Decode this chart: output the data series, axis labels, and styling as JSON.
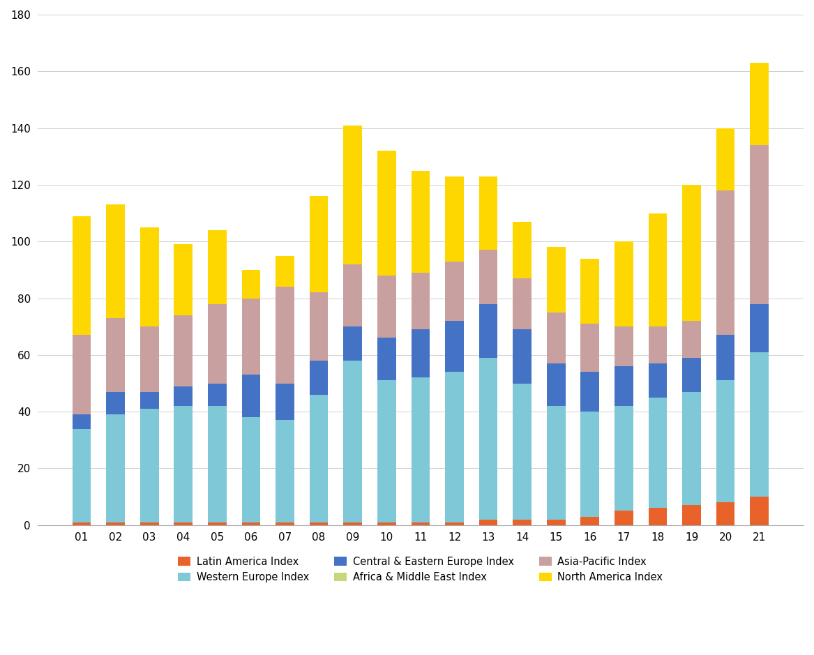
{
  "years": [
    "01",
    "02",
    "03",
    "04",
    "05",
    "06",
    "07",
    "08",
    "09",
    "10",
    "11",
    "12",
    "13",
    "14",
    "15",
    "16",
    "17",
    "18",
    "19",
    "20",
    "21"
  ],
  "latin_america": [
    1,
    1,
    1,
    1,
    1,
    1,
    1,
    1,
    1,
    1,
    1,
    1,
    2,
    2,
    2,
    3,
    5,
    6,
    7,
    8,
    10
  ],
  "western_europe": [
    33,
    38,
    40,
    41,
    41,
    37,
    36,
    45,
    57,
    50,
    51,
    53,
    57,
    48,
    40,
    37,
    37,
    39,
    40,
    43,
    51
  ],
  "central_eastern_europe": [
    5,
    8,
    6,
    7,
    8,
    15,
    13,
    12,
    12,
    15,
    17,
    18,
    19,
    19,
    15,
    14,
    14,
    12,
    12,
    16,
    17
  ],
  "africa_middle_east": [
    0,
    0,
    0,
    0,
    0,
    0,
    0,
    0,
    0,
    0,
    0,
    0,
    0,
    0,
    0,
    0,
    0,
    0,
    0,
    0,
    0
  ],
  "asia_pacific": [
    28,
    26,
    23,
    25,
    28,
    27,
    34,
    24,
    22,
    22,
    20,
    21,
    19,
    18,
    18,
    17,
    14,
    13,
    13,
    51,
    56
  ],
  "north_america": [
    42,
    40,
    35,
    25,
    26,
    10,
    11,
    34,
    49,
    44,
    36,
    30,
    26,
    20,
    23,
    23,
    30,
    40,
    48,
    22,
    29
  ],
  "colors": {
    "latin_america": "#E8622A",
    "western_europe": "#7EC8D8",
    "central_eastern_europe": "#4472C4",
    "africa_middle_east": "#C6D87C",
    "asia_pacific": "#C9A0A0",
    "north_america": "#FFD700"
  },
  "legend_labels": {
    "latin_america": "Latin America Index",
    "western_europe": "Western Europe Index",
    "central_eastern_europe": "Central & Eastern Europe Index",
    "africa_middle_east": "Africa & Middle East Index",
    "asia_pacific": "Asia-Pacific Index",
    "north_america": "North America Index"
  },
  "ylim": [
    0,
    180
  ],
  "yticks": [
    0,
    20,
    40,
    60,
    80,
    100,
    120,
    140,
    160,
    180
  ],
  "background_color": "#ffffff",
  "grid_color": "#d0d0d0"
}
